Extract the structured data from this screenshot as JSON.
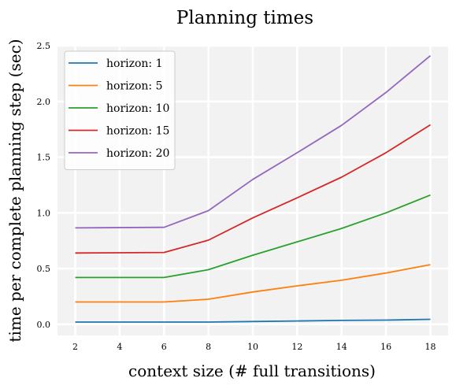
{
  "chart_data": {
    "type": "line",
    "title": "Planning times",
    "xlabel": "context size (# full transitions)",
    "ylabel": "time per complete planning step (sec)",
    "x": [
      2,
      6,
      8,
      10,
      12,
      14,
      16,
      18
    ],
    "xticks": [
      2,
      4,
      6,
      8,
      10,
      12,
      14,
      16,
      18
    ],
    "yticks": [
      0.0,
      0.5,
      1.0,
      1.5,
      2.0,
      2.5
    ],
    "ytick_labels": [
      "0.0",
      "0.5",
      "1.0",
      "1.5",
      "2.0",
      "2.5"
    ],
    "xlim": [
      1.2,
      18.8
    ],
    "ylim": [
      -0.1,
      2.5
    ],
    "grid": true,
    "legend_position": "top-left",
    "series": [
      {
        "name": "horizon: 1",
        "color": "#1f77b4",
        "values": [
          0.02,
          0.02,
          0.02,
          0.025,
          0.03,
          0.035,
          0.038,
          0.045
        ]
      },
      {
        "name": "horizon: 5",
        "color": "#ff7f0e",
        "values": [
          0.2,
          0.2,
          0.225,
          0.29,
          0.345,
          0.395,
          0.46,
          0.535
        ]
      },
      {
        "name": "horizon: 10",
        "color": "#2ca02c",
        "values": [
          0.42,
          0.42,
          0.49,
          0.62,
          0.74,
          0.86,
          1.0,
          1.16
        ]
      },
      {
        "name": "horizon: 15",
        "color": "#d62728",
        "values": [
          0.64,
          0.645,
          0.755,
          0.955,
          1.135,
          1.32,
          1.54,
          1.79
        ]
      },
      {
        "name": "horizon: 20",
        "color": "#9467bd",
        "values": [
          0.865,
          0.87,
          1.02,
          1.3,
          1.54,
          1.785,
          2.08,
          2.41
        ]
      }
    ]
  }
}
